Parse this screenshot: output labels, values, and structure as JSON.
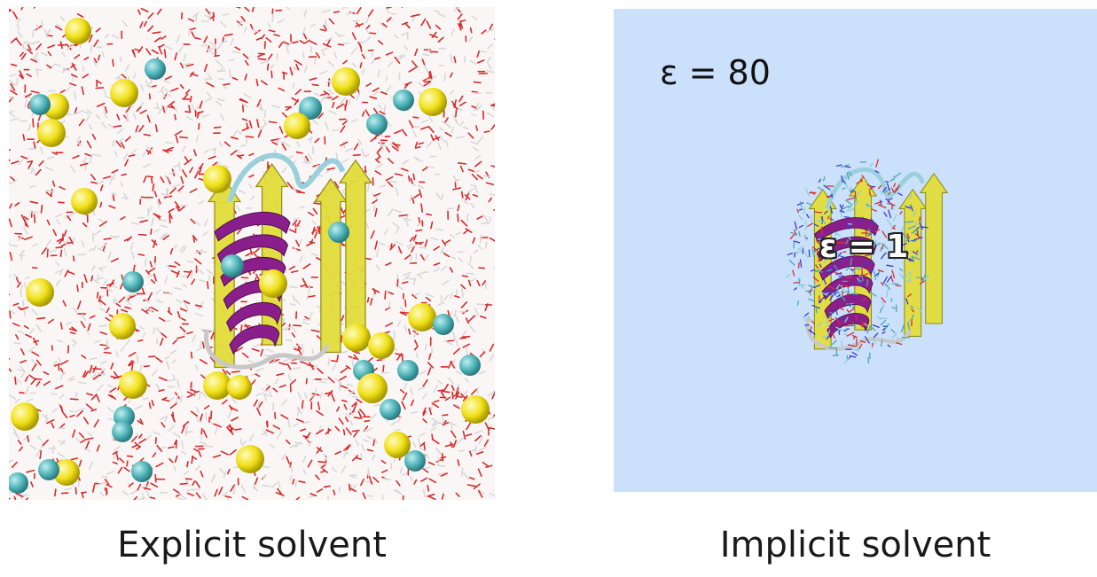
{
  "left": {
    "caption": "Explicit solvent"
  },
  "right": {
    "caption": "Implicit solvent",
    "outer_label": "ε = 80",
    "inner_label": "ε = 1"
  },
  "colors": {
    "water_oxygen": "#d62a2a",
    "water_hydrogen": "#d8d8d8",
    "ion_yellow": "#f0e018",
    "ion_cyan": "#4fb3b8",
    "helix": "#8a1f8c",
    "sheet": "#e3dd3c",
    "coil": "#9ad0dc",
    "continuum": "#cae0fb"
  },
  "icons": {
    "explicit_view": "molecular-structure-with-water-and-ions",
    "implicit_view": "protein-in-dielectric-continuum"
  }
}
